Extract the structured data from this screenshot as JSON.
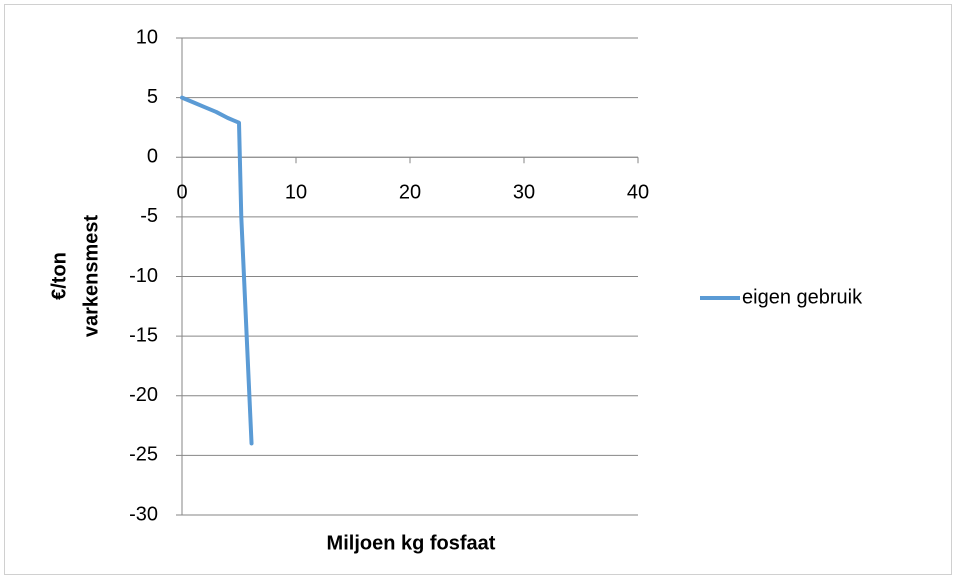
{
  "chart_data": {
    "type": "line",
    "xlabel": "Miljoen kg fosfaat",
    "ylabel": [
      "€/ton",
      "varkensmest"
    ],
    "x": [
      0,
      1,
      2,
      3,
      4,
      4.5,
      5,
      5.2,
      6.1
    ],
    "series": [
      {
        "name": "eigen gebruik",
        "color": "#5b9bd5",
        "values": [
          5,
          4.6,
          4.2,
          3.8,
          3.3,
          3.1,
          2.9,
          -5,
          -24
        ]
      }
    ],
    "xlim": [
      0,
      40
    ],
    "xticks": [
      0,
      10,
      20,
      30,
      40
    ],
    "ylim": [
      -30,
      10
    ],
    "yticks": [
      -30,
      -25,
      -20,
      -15,
      -10,
      -5,
      0,
      5,
      10
    ],
    "grid": true,
    "legend": "right"
  }
}
